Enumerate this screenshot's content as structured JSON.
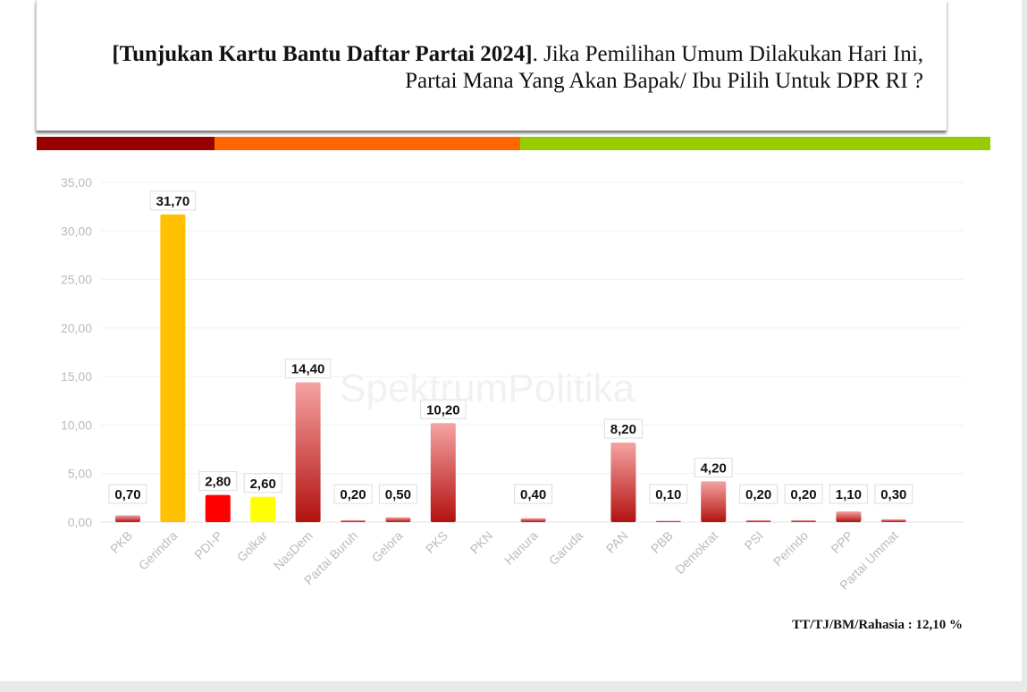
{
  "header": {
    "title_bold": "[Tunjukan Kartu Bantu Daftar Partai 2024]",
    "title_rest": ". Jika Pemilihan Umum Dilakukan Hari Ini, Partai Mana Yang Akan Bapak/ Ibu Pilih Untuk DPR RI ?",
    "stripe_colors": [
      "#990000",
      "#ff6600",
      "#99cc00"
    ]
  },
  "watermark": "SpektrumPolitika",
  "footnote": "TT/TJ/BM/Rahasia : 12,10 %",
  "chart_data": {
    "type": "bar",
    "title": "[Tunjukan Kartu Bantu Daftar Partai 2024]. Jika Pemilihan Umum Dilakukan Hari Ini, Partai Mana Yang Akan Bapak/ Ibu Pilih Untuk DPR RI ?",
    "xlabel": "",
    "ylabel": "",
    "ylim": [
      0,
      35
    ],
    "yticks": [
      "0,00",
      "5,00",
      "10,00",
      "15,00",
      "20,00",
      "25,00",
      "30,00",
      "35,00"
    ],
    "grid": true,
    "categories": [
      "PKB",
      "Gerindra",
      "PDI-P",
      "Golkar",
      "NasDem",
      "Partai Buruh",
      "Gelora",
      "PKS",
      "PKN",
      "Hanura",
      "Garuda",
      "PAN",
      "PBB",
      "Demokrat",
      "PSI",
      "Perindo",
      "PPP",
      "Partai Ummat"
    ],
    "values": [
      0.7,
      31.7,
      2.8,
      2.6,
      14.4,
      0.2,
      0.5,
      10.2,
      null,
      0.4,
      null,
      8.2,
      0.1,
      4.2,
      0.2,
      0.2,
      1.1,
      0.3
    ],
    "labels": [
      "0,70",
      "31,70",
      "2,80",
      "2,60",
      "14,40",
      "0,20",
      "0,50",
      "10,20",
      "",
      "0,40",
      "",
      "8,20",
      "0,10",
      "4,20",
      "0,20",
      "0,20",
      "1,10",
      "0,30"
    ],
    "colors": [
      "gradient",
      "#ffc000",
      "#ff0000",
      "#ffff00",
      "gradient",
      "gradient",
      "gradient",
      "gradient",
      "gradient",
      "gradient",
      "gradient",
      "gradient",
      "gradient",
      "gradient",
      "gradient",
      "gradient",
      "gradient",
      "gradient"
    ]
  }
}
